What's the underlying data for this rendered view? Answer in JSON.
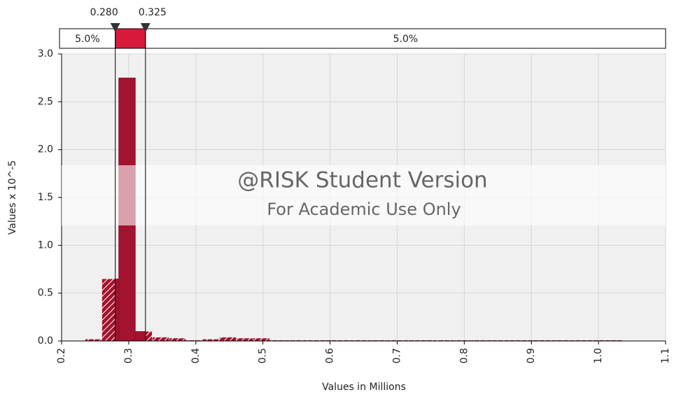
{
  "chart_data": {
    "type": "histogram",
    "xlabel": "Values in Millions",
    "ylabel": "Values x 10^-5",
    "bins": [
      0.235,
      0.26,
      0.285,
      0.31,
      0.335,
      0.36,
      0.385,
      0.41,
      0.435,
      0.46,
      0.485,
      0.51,
      0.535,
      0.56,
      0.585,
      0.61,
      0.635,
      0.66,
      0.685,
      0.71,
      0.735,
      0.76,
      0.785,
      0.81,
      0.835,
      0.86,
      0.885,
      0.91,
      0.935,
      0.96,
      0.985,
      1.01,
      1.035
    ],
    "values": [
      0.02,
      0.65,
      2.75,
      0.1,
      0.04,
      0.03,
      0.01,
      0.02,
      0.04,
      0.03,
      0.03,
      0.01,
      0.01,
      0.01,
      0.01,
      0.01,
      0.01,
      0.01,
      0.01,
      0.01,
      0.01,
      0.01,
      0.01,
      0.01,
      0.01,
      0.01,
      0.01,
      0.01,
      0.01,
      0.01,
      0.01,
      0.01
    ],
    "color": "#a3122e",
    "highlight_color": "#d71a3c",
    "xlim": [
      0.2,
      1.1
    ],
    "ylim": [
      0,
      3
    ],
    "xticks": [
      0.2,
      0.3,
      0.4,
      0.5,
      0.6,
      0.7,
      0.8,
      0.9,
      {
        "value": 1,
        "label": "1.0"
      },
      1.1
    ],
    "yticks": [
      {
        "value": 0,
        "label": "0.0"
      },
      0.5,
      {
        "value": 1,
        "label": "1.0"
      },
      1.5,
      {
        "value": 2,
        "label": "2.0"
      },
      2.5,
      {
        "value": 3,
        "label": "3.0"
      }
    ],
    "grid": true,
    "delimiters": [
      {
        "value": 0.28,
        "label": "0.280"
      },
      {
        "value": 0.325,
        "label": "0.325"
      }
    ],
    "tail_labels": [
      "5.0%",
      "5.0%"
    ],
    "watermark": [
      "@RISK Student Version",
      "For Academic Use Only"
    ]
  }
}
